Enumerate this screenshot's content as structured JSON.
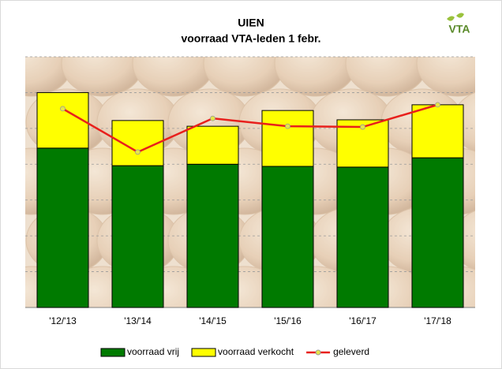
{
  "logo": "VTA",
  "chart_data": {
    "type": "bar",
    "stacked": true,
    "title": "UIEN",
    "subtitle": "voorraad VTA-leden 1 febr.",
    "categories": [
      "'12/'13",
      "'13/'14",
      "'14/'15",
      "'15/'16",
      "'16/'17",
      "'17/'18"
    ],
    "series": [
      {
        "name": "voorraad vrij",
        "type": "bar",
        "color": "#007a00",
        "values": [
          4.45,
          3.96,
          4.0,
          3.94,
          3.92,
          4.18
        ]
      },
      {
        "name": "voorraad verkocht",
        "type": "bar",
        "color": "#ffff00",
        "values": [
          1.55,
          1.26,
          1.06,
          1.56,
          1.32,
          1.48
        ]
      },
      {
        "name": "geleverd",
        "type": "line",
        "color": "#e8201c",
        "values": [
          5.55,
          4.34,
          5.28,
          5.06,
          5.04,
          5.66
        ]
      }
    ],
    "ylim": [
      0,
      7
    ],
    "yticks": [
      0,
      1,
      2,
      3,
      4,
      5,
      6,
      7
    ],
    "grid": true,
    "legend": "bottom"
  }
}
